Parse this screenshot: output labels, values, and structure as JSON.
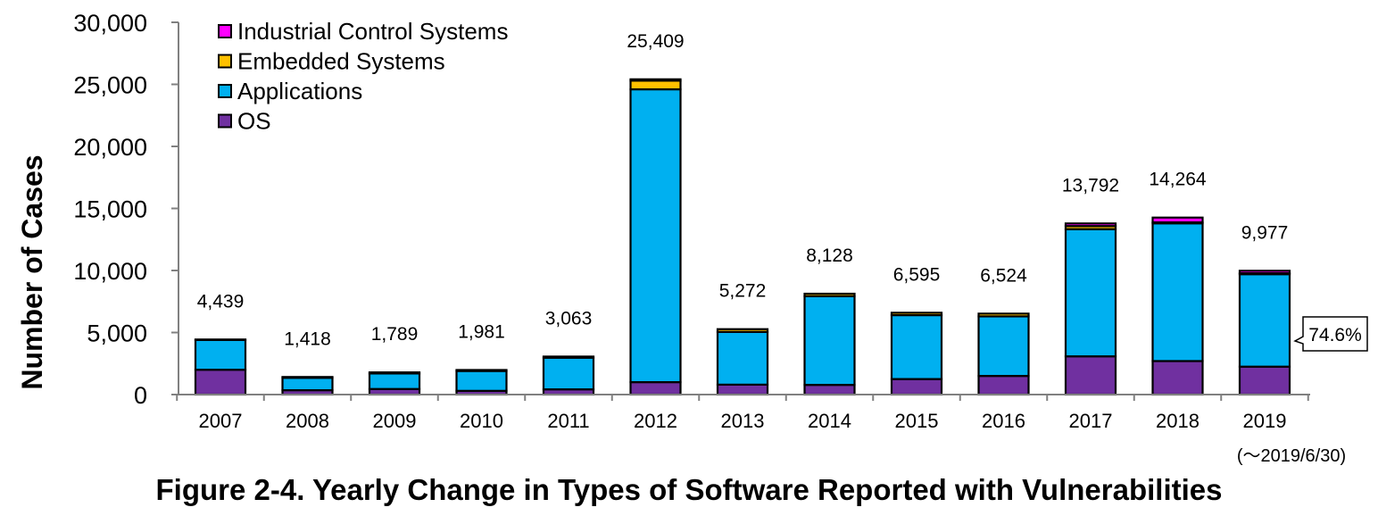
{
  "caption": "Figure 2-4.  Yearly Change in Types of Software Reported with Vulnerabilities",
  "chart_data": {
    "type": "bar",
    "stacked": true,
    "ylabel": "Number of Cases",
    "xlabel": "",
    "ylim": [
      0,
      30000
    ],
    "yticks": [
      0,
      5000,
      10000,
      15000,
      20000,
      25000,
      30000
    ],
    "ytick_labels": [
      "0",
      "5,000",
      "10,000",
      "15,000",
      "20,000",
      "25,000",
      "30,000"
    ],
    "grid": false,
    "legend_position": "top-left",
    "categories": [
      "2007",
      "2008",
      "2009",
      "2010",
      "2011",
      "2012",
      "2013",
      "2014",
      "2015",
      "2016",
      "2017",
      "2018",
      "2019"
    ],
    "category_note": {
      "index": 12,
      "text": "(～2019/6/30)"
    },
    "series": [
      {
        "name": "OS",
        "color": "#7030a0",
        "values": [
          2000,
          350,
          450,
          300,
          420,
          1000,
          800,
          780,
          1250,
          1500,
          3080,
          2700,
          2250
        ]
      },
      {
        "name": "Applications",
        "color": "#00b0f0",
        "values": [
          2400,
          1000,
          1250,
          1600,
          2550,
          23600,
          4250,
          7150,
          5150,
          4800,
          10250,
          11100,
          7450
        ]
      },
      {
        "name": "Embedded Systems",
        "color": "#ffc000",
        "values": [
          39,
          68,
          89,
          81,
          93,
          700,
          222,
          198,
          195,
          224,
          250,
          80,
          77
        ]
      },
      {
        "name": "Industrial Control Systems",
        "color": "#ff00ff",
        "values": [
          0,
          0,
          0,
          0,
          0,
          109,
          0,
          0,
          0,
          0,
          212,
          384,
          200
        ]
      }
    ],
    "totals": [
      4439,
      1418,
      1789,
      1981,
      3063,
      25409,
      5272,
      8128,
      6595,
      6524,
      13792,
      14264,
      9977
    ],
    "total_labels": [
      "4,439",
      "1,418",
      "1,789",
      "1,981",
      "3,063",
      "25,409",
      "5,272",
      "8,128",
      "6,595",
      "6,524",
      "13,792",
      "14,264",
      "9,977"
    ],
    "annotations": [
      {
        "text": "74.6%",
        "category": "2019",
        "series": "Applications"
      }
    ]
  }
}
